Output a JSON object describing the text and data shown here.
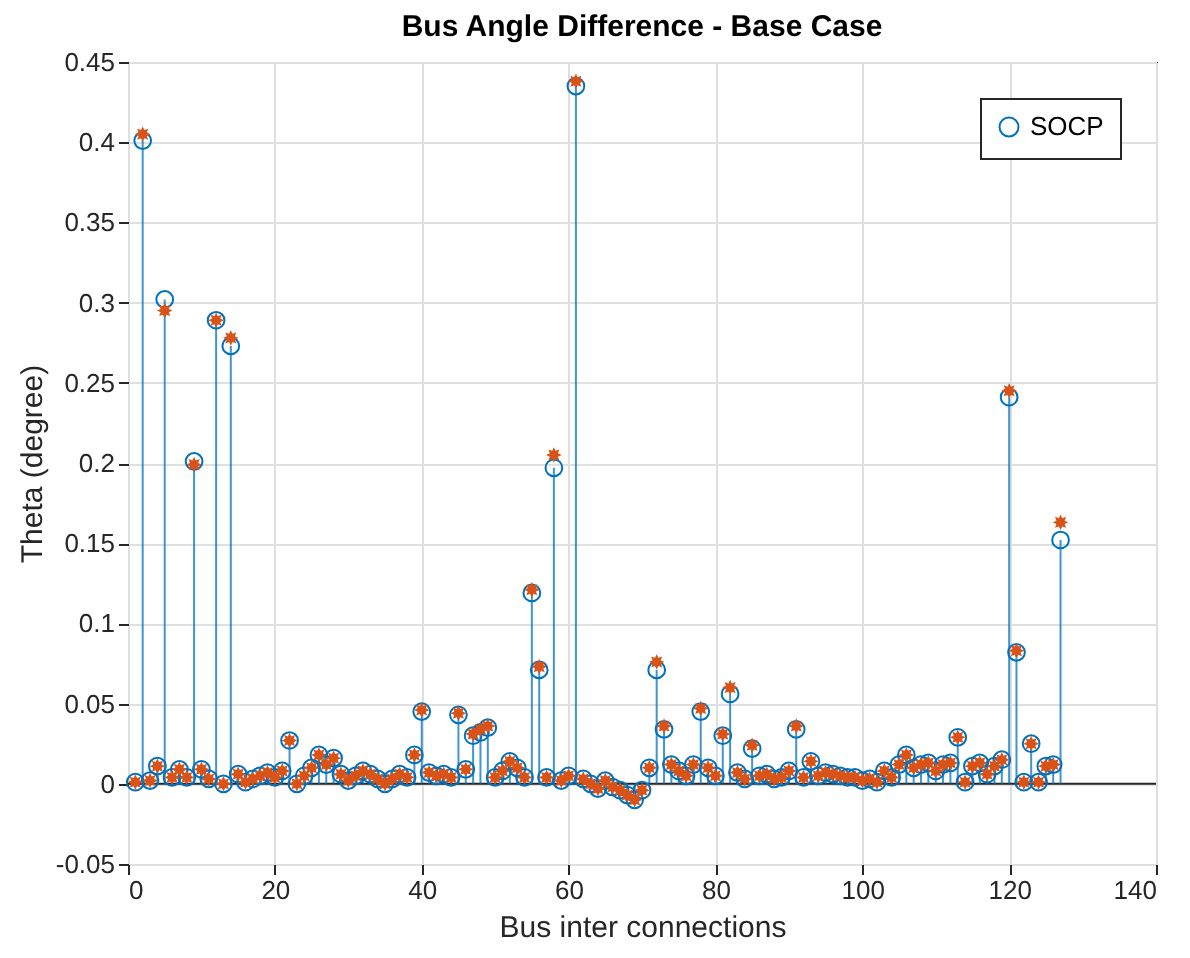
{
  "chart_data": {
    "type": "scatter",
    "title": "Bus Angle Difference - Base Case",
    "xlabel": "Bus inter connections",
    "ylabel": "Theta (degree)",
    "xlim": [
      0,
      140
    ],
    "xticks": [
      0,
      20,
      40,
      60,
      80,
      100,
      120,
      140
    ],
    "ylim": [
      -0.05,
      0.45
    ],
    "yticks": [
      -0.05,
      0,
      0.05,
      0.1,
      0.15,
      0.2,
      0.25,
      0.3,
      0.35,
      0.4,
      0.45
    ],
    "grid": true,
    "legend": "top right",
    "x": [
      1,
      2,
      3,
      4,
      5,
      6,
      7,
      8,
      9,
      10,
      11,
      12,
      13,
      14,
      15,
      16,
      17,
      18,
      19,
      20,
      21,
      22,
      23,
      24,
      25,
      26,
      27,
      28,
      29,
      30,
      31,
      32,
      33,
      34,
      35,
      36,
      37,
      38,
      39,
      40,
      41,
      42,
      43,
      44,
      45,
      46,
      47,
      48,
      49,
      50,
      51,
      52,
      53,
      54,
      55,
      56,
      57,
      58,
      59,
      60,
      61,
      62,
      63,
      64,
      65,
      66,
      67,
      68,
      69,
      70,
      71,
      72,
      73,
      74,
      75,
      76,
      77,
      78,
      79,
      80,
      81,
      82,
      83,
      84,
      85,
      86,
      87,
      88,
      89,
      90,
      91,
      92,
      93,
      94,
      95,
      96,
      97,
      98,
      99,
      100,
      101,
      102,
      103,
      104,
      105,
      106,
      107,
      108,
      109,
      110,
      111,
      112,
      113,
      114,
      115,
      116,
      117,
      118,
      119,
      120,
      121,
      122,
      123,
      124,
      125,
      126,
      127
    ],
    "series": [
      {
        "name": "SOCP",
        "type": "lollipop",
        "marker": "circle",
        "color": "#0072bd",
        "values": [
          0.001,
          0.401,
          0.002,
          0.011,
          0.302,
          0.004,
          0.009,
          0.004,
          0.201,
          0.009,
          0.003,
          0.289,
          0.0,
          0.273,
          0.006,
          0.001,
          0.003,
          0.005,
          0.007,
          0.004,
          0.008,
          0.027,
          0.0,
          0.005,
          0.01,
          0.018,
          0.012,
          0.016,
          0.006,
          0.002,
          0.005,
          0.008,
          0.006,
          0.003,
          0.0,
          0.003,
          0.006,
          0.004,
          0.018,
          0.045,
          0.007,
          0.005,
          0.006,
          0.004,
          0.043,
          0.009,
          0.03,
          0.032,
          0.035,
          0.004,
          0.008,
          0.014,
          0.01,
          0.004,
          0.119,
          0.071,
          0.004,
          0.197,
          0.002,
          0.005,
          0.435,
          0.003,
          0.0,
          -0.003,
          0.002,
          -0.002,
          -0.004,
          -0.007,
          -0.01,
          -0.004,
          0.01,
          0.071,
          0.034,
          0.012,
          0.008,
          0.005,
          0.012,
          0.045,
          0.01,
          0.005,
          0.03,
          0.056,
          0.007,
          0.003,
          0.022,
          0.005,
          0.006,
          0.003,
          0.004,
          0.008,
          0.034,
          0.004,
          0.014,
          0.005,
          0.007,
          0.006,
          0.005,
          0.004,
          0.004,
          0.002,
          0.003,
          0.001,
          0.008,
          0.004,
          0.012,
          0.018,
          0.01,
          0.012,
          0.013,
          0.008,
          0.012,
          0.013,
          0.029,
          0.001,
          0.011,
          0.013,
          0.006,
          0.011,
          0.015,
          0.241,
          0.082,
          0.001,
          0.025,
          0.001,
          0.011,
          0.012,
          0.152
        ]
      },
      {
        "marker": "star",
        "color": "#d95319",
        "values": [
          0.001,
          0.405,
          0.002,
          0.011,
          0.295,
          0.004,
          0.009,
          0.004,
          0.199,
          0.009,
          0.003,
          0.289,
          0.0,
          0.278,
          0.006,
          0.001,
          0.003,
          0.005,
          0.007,
          0.004,
          0.008,
          0.027,
          0.0,
          0.005,
          0.01,
          0.018,
          0.012,
          0.016,
          0.006,
          0.002,
          0.005,
          0.008,
          0.006,
          0.003,
          0.0,
          0.003,
          0.006,
          0.004,
          0.018,
          0.046,
          0.007,
          0.005,
          0.006,
          0.004,
          0.044,
          0.009,
          0.031,
          0.034,
          0.036,
          0.004,
          0.008,
          0.014,
          0.01,
          0.004,
          0.121,
          0.073,
          0.004,
          0.205,
          0.002,
          0.005,
          0.438,
          0.003,
          0.0,
          -0.003,
          0.002,
          -0.002,
          -0.004,
          -0.007,
          -0.01,
          -0.004,
          0.01,
          0.076,
          0.036,
          0.012,
          0.008,
          0.005,
          0.012,
          0.047,
          0.01,
          0.005,
          0.031,
          0.06,
          0.007,
          0.003,
          0.024,
          0.005,
          0.006,
          0.003,
          0.004,
          0.008,
          0.036,
          0.004,
          0.014,
          0.005,
          0.007,
          0.006,
          0.005,
          0.004,
          0.004,
          0.002,
          0.003,
          0.001,
          0.008,
          0.004,
          0.012,
          0.018,
          0.01,
          0.012,
          0.013,
          0.008,
          0.012,
          0.013,
          0.029,
          0.001,
          0.011,
          0.013,
          0.006,
          0.011,
          0.015,
          0.245,
          0.083,
          0.001,
          0.025,
          0.001,
          0.011,
          0.012,
          0.163
        ]
      }
    ]
  }
}
